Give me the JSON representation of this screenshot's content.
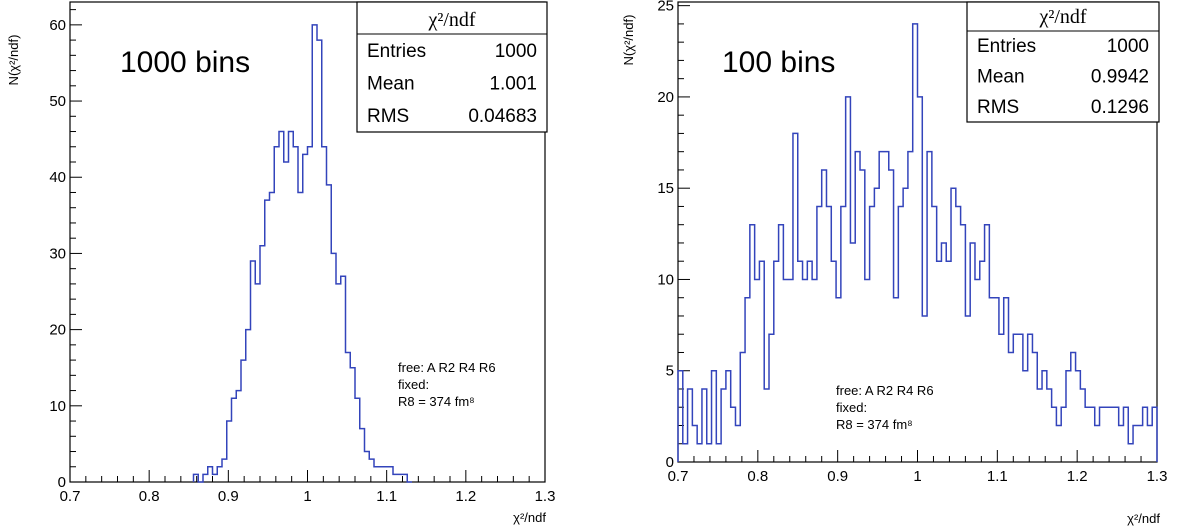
{
  "chart_data": [
    {
      "type": "histogram",
      "label": "1000 bins",
      "xlabel": "χ²/ndf",
      "ylabel": "N(χ²/ndf)",
      "xlim": [
        0.7,
        1.3
      ],
      "ylim": [
        0,
        63
      ],
      "x_ticks": [
        "0.7",
        "0.8",
        "0.9",
        "1",
        "1.1",
        "1.2",
        "1.3"
      ],
      "y_ticks": [
        "0",
        "10",
        "20",
        "30",
        "40",
        "50",
        "60"
      ],
      "stats": {
        "title": "χ²/ndf",
        "rows": [
          {
            "label": "Entries",
            "value": "1000"
          },
          {
            "label": "Mean",
            "value": "1.001"
          },
          {
            "label": "RMS",
            "value": "0.04683"
          }
        ]
      },
      "note": [
        "free: A R2 R4 R6",
        "fixed:",
        "R8 = 374 fm⁸"
      ],
      "series_color": "#3344bb",
      "edges": [
        0.856,
        0.862,
        0.868,
        0.874,
        0.88,
        0.886,
        0.892,
        0.898,
        0.904,
        0.91,
        0.916,
        0.922,
        0.928,
        0.934,
        0.94,
        0.946,
        0.952,
        0.958,
        0.964,
        0.97,
        0.976,
        0.982,
        0.988,
        0.994,
        1.0,
        1.006,
        1.012,
        1.018,
        1.024,
        1.03,
        1.036,
        1.042,
        1.048,
        1.054,
        1.06,
        1.066,
        1.072,
        1.078,
        1.084,
        1.09,
        1.096,
        1.102,
        1.108,
        1.114,
        1.12,
        1.126,
        1.132
      ],
      "counts": [
        1,
        0,
        1,
        2,
        1,
        2,
        3,
        8,
        11,
        12,
        16,
        20,
        29,
        26,
        31,
        37,
        38,
        44,
        46,
        42,
        46,
        44,
        38,
        43,
        44,
        60,
        58,
        44,
        39,
        30,
        26,
        27,
        17,
        15,
        11,
        7,
        4,
        3,
        2,
        2,
        2,
        2,
        1,
        1,
        1,
        0
      ]
    },
    {
      "type": "histogram",
      "label": "100 bins",
      "xlabel": "χ²/ndf",
      "ylabel": "N(χ²/ndf)",
      "xlim": [
        0.7,
        1.3
      ],
      "ylim": [
        0,
        25.2
      ],
      "x_ticks": [
        "0.7",
        "0.8",
        "0.9",
        "1",
        "1.1",
        "1.2",
        "1.3"
      ],
      "y_ticks": [
        "0",
        "5",
        "10",
        "15",
        "20",
        "25"
      ],
      "stats": {
        "title": "χ²/ndf",
        "rows": [
          {
            "label": "Entries",
            "value": "1000"
          },
          {
            "label": "Mean",
            "value": "0.9942"
          },
          {
            "label": "RMS",
            "value": "0.1296"
          }
        ]
      },
      "note": [
        "free: A R2 R4 R6",
        "fixed:",
        "R8 = 374 fm⁸"
      ],
      "series_color": "#3344bb",
      "edges": [
        0.7,
        0.706,
        0.712,
        0.718,
        0.724,
        0.73,
        0.736,
        0.742,
        0.748,
        0.754,
        0.76,
        0.766,
        0.772,
        0.778,
        0.784,
        0.79,
        0.796,
        0.802,
        0.808,
        0.814,
        0.82,
        0.826,
        0.832,
        0.838,
        0.844,
        0.85,
        0.856,
        0.862,
        0.868,
        0.874,
        0.88,
        0.886,
        0.892,
        0.898,
        0.904,
        0.91,
        0.916,
        0.922,
        0.928,
        0.934,
        0.94,
        0.946,
        0.952,
        0.958,
        0.964,
        0.97,
        0.976,
        0.982,
        0.988,
        0.994,
        1.0,
        1.006,
        1.012,
        1.018,
        1.024,
        1.03,
        1.036,
        1.042,
        1.048,
        1.054,
        1.06,
        1.066,
        1.072,
        1.078,
        1.084,
        1.09,
        1.096,
        1.102,
        1.108,
        1.114,
        1.12,
        1.126,
        1.132,
        1.138,
        1.144,
        1.15,
        1.156,
        1.162,
        1.168,
        1.174,
        1.18,
        1.186,
        1.192,
        1.198,
        1.204,
        1.21,
        1.216,
        1.222,
        1.228,
        1.234,
        1.24,
        1.246,
        1.252,
        1.258,
        1.264,
        1.27,
        1.276,
        1.282,
        1.288,
        1.294,
        1.3
      ],
      "counts": [
        5,
        1,
        4,
        2,
        1,
        4,
        1,
        5,
        1,
        4,
        5,
        3,
        2,
        6,
        9,
        13,
        10,
        11,
        4,
        7,
        11,
        13,
        10,
        10,
        18,
        11,
        10,
        11,
        10,
        14,
        16,
        14,
        11,
        9,
        14,
        20,
        12,
        17,
        16,
        10,
        14,
        15,
        17,
        17,
        16,
        9,
        14,
        15,
        17,
        24,
        20,
        8,
        17,
        14,
        11,
        12,
        11,
        15,
        14,
        13,
        8,
        12,
        10,
        11,
        13,
        9,
        9,
        7,
        9,
        6,
        7,
        7,
        5,
        7,
        6,
        4,
        5,
        4,
        3,
        2,
        3,
        5,
        6,
        5,
        4,
        3,
        3,
        2,
        3,
        3,
        3,
        3,
        2,
        3,
        1,
        2,
        2,
        3,
        2,
        3
      ]
    }
  ]
}
